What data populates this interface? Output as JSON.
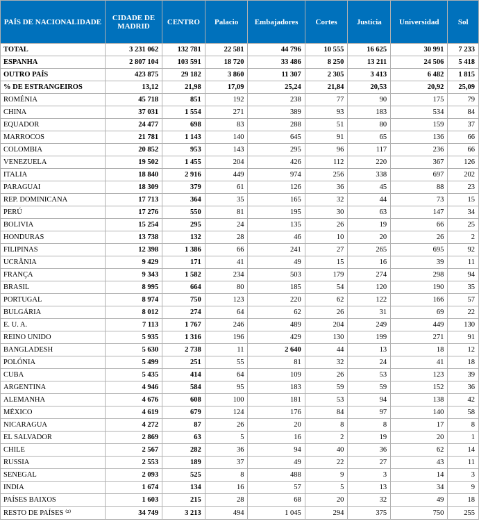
{
  "columns": [
    {
      "key": "country",
      "label": "PAÍS DE NACIONALIDADE",
      "class": "col-country"
    },
    {
      "key": "madrid",
      "label": "CIDADE DE MADRID",
      "class": "col-madrid"
    },
    {
      "key": "centro",
      "label": "CENTRO",
      "class": "col-centro"
    },
    {
      "key": "palacio",
      "label": "Palacio",
      "class": "col-pal"
    },
    {
      "key": "embajadores",
      "label": "Embajadores",
      "class": "col-emb"
    },
    {
      "key": "cortes",
      "label": "Cortes",
      "class": "col-cor"
    },
    {
      "key": "justicia",
      "label": "Justicia",
      "class": "col-jus"
    },
    {
      "key": "universidad",
      "label": "Universidad",
      "class": "col-uni"
    },
    {
      "key": "sol",
      "label": "Sol",
      "class": "col-sol"
    }
  ],
  "rows": [
    {
      "bold": true,
      "cells": [
        "TOTAL",
        "3 231 062",
        "132 781",
        "22 581",
        "44 796",
        "10 555",
        "16 625",
        "30 991",
        "7 233"
      ],
      "boldcols": [
        0,
        1,
        2,
        3,
        4,
        5,
        6,
        7,
        8
      ]
    },
    {
      "bold": true,
      "cells": [
        "ESPANHA",
        "2 807 104",
        "103 591",
        "18 720",
        "33 486",
        "8 250",
        "13 211",
        "24 506",
        "5 418"
      ],
      "boldcols": [
        0,
        1,
        2,
        3,
        4,
        5,
        6,
        7,
        8
      ]
    },
    {
      "bold": true,
      "cells": [
        "OUTRO PAÍS",
        "423 875",
        "29 182",
        "3 860",
        "11 307",
        "2 305",
        "3 413",
        "6 482",
        "1 815"
      ],
      "boldcols": [
        0,
        1,
        2,
        3,
        4,
        5,
        6,
        7,
        8
      ]
    },
    {
      "bold": true,
      "cells": [
        "% DE ESTRANGEIROS",
        "13,12",
        "21,98",
        "17,09",
        "25,24",
        "21,84",
        "20,53",
        "20,92",
        "25,09"
      ],
      "boldcols": [
        0,
        1,
        2
      ]
    },
    {
      "cells": [
        "ROMÉNIA",
        "45 718",
        "851",
        "192",
        "238",
        "77",
        "90",
        "175",
        "79"
      ],
      "boldcols": [
        1,
        2
      ]
    },
    {
      "cells": [
        "CHINA",
        "37 031",
        "1 554",
        "271",
        "389",
        "93",
        "183",
        "534",
        "84"
      ],
      "boldcols": [
        1,
        2
      ]
    },
    {
      "cells": [
        "EQUADOR",
        "24 477",
        "698",
        "83",
        "288",
        "51",
        "80",
        "159",
        "37"
      ],
      "boldcols": [
        1,
        2
      ]
    },
    {
      "cells": [
        "MARROCOS",
        "21 781",
        "1 143",
        "140",
        "645",
        "91",
        "65",
        "136",
        "66"
      ],
      "boldcols": [
        1,
        2
      ]
    },
    {
      "cells": [
        "COLOMBIA",
        "20 852",
        "953",
        "143",
        "295",
        "96",
        "117",
        "236",
        "66"
      ],
      "boldcols": [
        1,
        2
      ]
    },
    {
      "cells": [
        "VENEZUELA",
        "19 502",
        "1 455",
        "204",
        "426",
        "112",
        "220",
        "367",
        "126"
      ],
      "boldcols": [
        1,
        2
      ]
    },
    {
      "cells": [
        "ITALIA",
        "18 840",
        "2 916",
        "449",
        "974",
        "256",
        "338",
        "697",
        "202"
      ],
      "boldcols": [
        1,
        2
      ]
    },
    {
      "cells": [
        "PARAGUAI",
        "18 309",
        "379",
        "61",
        "126",
        "36",
        "45",
        "88",
        "23"
      ],
      "boldcols": [
        1,
        2
      ]
    },
    {
      "cells": [
        "REP. DOMINICANA",
        "17 713",
        "364",
        "35",
        "165",
        "32",
        "44",
        "73",
        "15"
      ],
      "boldcols": [
        1,
        2
      ]
    },
    {
      "cells": [
        "PERÚ",
        "17 276",
        "550",
        "81",
        "195",
        "30",
        "63",
        "147",
        "34"
      ],
      "boldcols": [
        1,
        2
      ]
    },
    {
      "cells": [
        "BOLIVIA",
        "15 254",
        "295",
        "24",
        "135",
        "26",
        "19",
        "66",
        "25"
      ],
      "boldcols": [
        1,
        2
      ]
    },
    {
      "cells": [
        "HONDURAS",
        "13 738",
        "132",
        "28",
        "46",
        "10",
        "20",
        "26",
        "2"
      ],
      "boldcols": [
        1,
        2
      ]
    },
    {
      "cells": [
        "FILIPINAS",
        "12 398",
        "1 386",
        "66",
        "241",
        "27",
        "265",
        "695",
        "92"
      ],
      "boldcols": [
        1,
        2
      ]
    },
    {
      "cells": [
        "UCRÂNIA",
        "9 429",
        "171",
        "41",
        "49",
        "15",
        "16",
        "39",
        "11"
      ],
      "boldcols": [
        1,
        2
      ]
    },
    {
      "cells": [
        "FRANÇA",
        "9 343",
        "1 582",
        "234",
        "503",
        "179",
        "274",
        "298",
        "94"
      ],
      "boldcols": [
        1,
        2
      ]
    },
    {
      "cells": [
        "BRASIL",
        "8 995",
        "664",
        "80",
        "185",
        "54",
        "120",
        "190",
        "35"
      ],
      "boldcols": [
        1,
        2
      ]
    },
    {
      "cells": [
        "PORTUGAL",
        "8 974",
        "750",
        "123",
        "220",
        "62",
        "122",
        "166",
        "57"
      ],
      "boldcols": [
        1,
        2
      ]
    },
    {
      "cells": [
        "BULGÁRIA",
        "8 012",
        "274",
        "64",
        "62",
        "26",
        "31",
        "69",
        "22"
      ],
      "boldcols": [
        1,
        2
      ]
    },
    {
      "cells": [
        "E. U. A.",
        "7 113",
        "1 767",
        "246",
        "489",
        "204",
        "249",
        "449",
        "130"
      ],
      "boldcols": [
        1,
        2
      ]
    },
    {
      "cells": [
        "REINO UNIDO",
        "5 935",
        "1 316",
        "196",
        "429",
        "130",
        "199",
        "271",
        "91"
      ],
      "boldcols": [
        1,
        2
      ]
    },
    {
      "cells": [
        "BANGLADESH",
        "5 630",
        "2 738",
        "11",
        "2 640",
        "44",
        "13",
        "18",
        "12"
      ],
      "boldcols": [
        1,
        2,
        4
      ]
    },
    {
      "cells": [
        "POLÓNIA",
        "5 499",
        "251",
        "55",
        "81",
        "32",
        "24",
        "41",
        "18"
      ],
      "boldcols": [
        1,
        2
      ]
    },
    {
      "cells": [
        "CUBA",
        "5 435",
        "414",
        "64",
        "109",
        "26",
        "53",
        "123",
        "39"
      ],
      "boldcols": [
        1,
        2
      ]
    },
    {
      "cells": [
        "ARGENTINA",
        "4 946",
        "584",
        "95",
        "183",
        "59",
        "59",
        "152",
        "36"
      ],
      "boldcols": [
        1,
        2
      ]
    },
    {
      "cells": [
        "ALEMANHA",
        "4 676",
        "608",
        "100",
        "181",
        "53",
        "94",
        "138",
        "42"
      ],
      "boldcols": [
        1,
        2
      ]
    },
    {
      "cells": [
        "MÉXICO",
        "4 619",
        "679",
        "124",
        "176",
        "84",
        "97",
        "140",
        "58"
      ],
      "boldcols": [
        1,
        2
      ]
    },
    {
      "cells": [
        "NICARAGUA",
        "4 272",
        "87",
        "26",
        "20",
        "8",
        "8",
        "17",
        "8"
      ],
      "boldcols": [
        1,
        2
      ]
    },
    {
      "cells": [
        "EL SALVADOR",
        "2 869",
        "63",
        "5",
        "16",
        "2",
        "19",
        "20",
        "1"
      ],
      "boldcols": [
        1,
        2
      ]
    },
    {
      "cells": [
        "CHILE",
        "2 567",
        "282",
        "36",
        "94",
        "40",
        "36",
        "62",
        "14"
      ],
      "boldcols": [
        1,
        2
      ]
    },
    {
      "cells": [
        "RUSSIA",
        "2 553",
        "189",
        "37",
        "49",
        "22",
        "27",
        "43",
        "11"
      ],
      "boldcols": [
        1,
        2
      ]
    },
    {
      "cells": [
        "SENEGAL",
        "2 093",
        "525",
        "8",
        "488",
        "9",
        "3",
        "14",
        "3"
      ],
      "boldcols": [
        1,
        2
      ]
    },
    {
      "cells": [
        "INDIA",
        "1 674",
        "134",
        "16",
        "57",
        "5",
        "13",
        "34",
        "9"
      ],
      "boldcols": [
        1,
        2
      ]
    },
    {
      "cells": [
        "PAÍSES BAIXOS",
        "1 603",
        "215",
        "28",
        "68",
        "20",
        "32",
        "49",
        "18"
      ],
      "boldcols": [
        1,
        2
      ]
    },
    {
      "cells": [
        "RESTO DE PAÍSES ⁽²⁾",
        "34 749",
        "3 213",
        "494",
        "1 045",
        "294",
        "375",
        "750",
        "255"
      ],
      "boldcols": [
        1,
        2
      ]
    }
  ],
  "colors": {
    "header_bg": "#0071bc",
    "header_fg": "#ffffff",
    "border": "#b0b0b0"
  }
}
